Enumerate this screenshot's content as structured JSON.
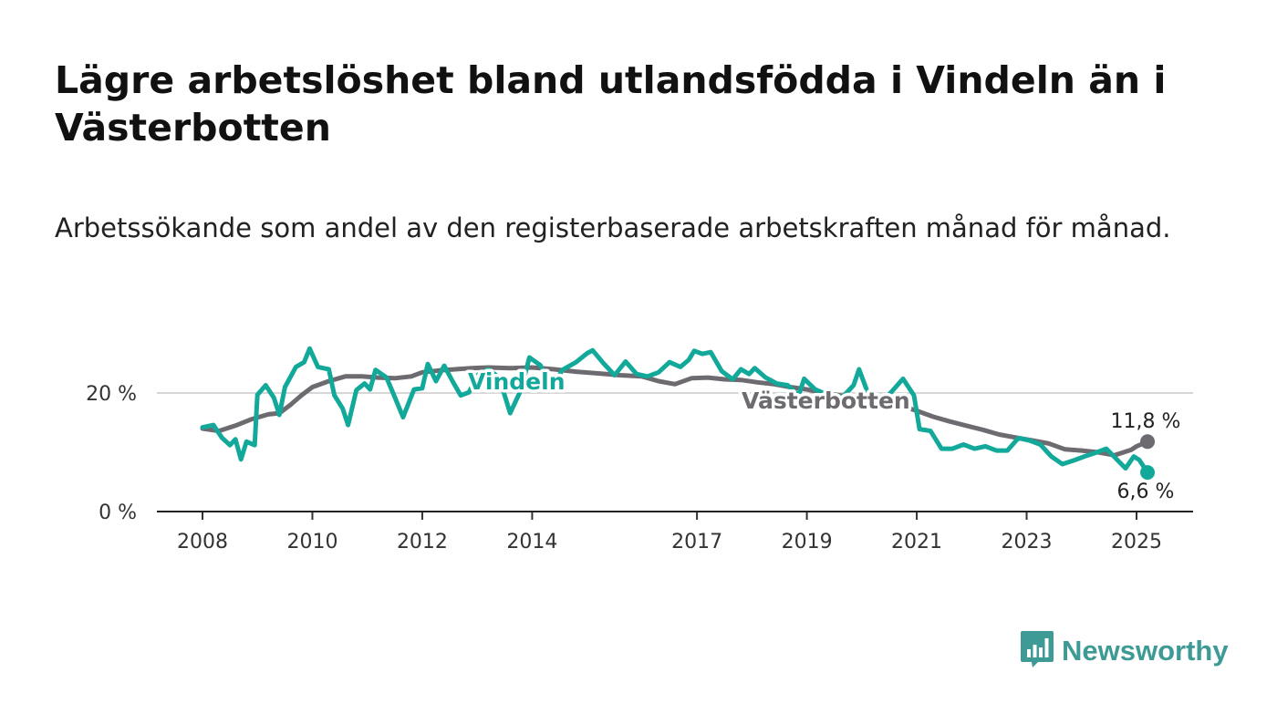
{
  "title": "Lägre arbetslöshet bland utlandsfödda i Vindeln än i Västerbotten",
  "subtitle": "Arbetssökande som andel av den registerbaserade arbetskraften månad för månad.",
  "brand": {
    "name": "Newsworthy",
    "color": "#3e9a95",
    "icon": "bar-chart-icon"
  },
  "chart_data": {
    "type": "line",
    "x_ticks": [
      "2008",
      "2010",
      "2012",
      "2014",
      "2017",
      "2019",
      "2021",
      "2023",
      "2025"
    ],
    "y_ticks": [
      "0 %",
      "20 %"
    ],
    "ylim": [
      0,
      30
    ],
    "grid": true,
    "series": [
      {
        "name": "Västerbotten",
        "color": "#6d6a70",
        "end_label": "11,8 %",
        "points": [
          [
            2008.0,
            14.0
          ],
          [
            2008.3,
            13.6
          ],
          [
            2008.6,
            14.5
          ],
          [
            2008.9,
            15.6
          ],
          [
            2009.2,
            16.4
          ],
          [
            2009.4,
            16.6
          ],
          [
            2009.6,
            18.0
          ],
          [
            2009.8,
            19.6
          ],
          [
            2010.0,
            21.0
          ],
          [
            2010.3,
            22.0
          ],
          [
            2010.6,
            22.8
          ],
          [
            2010.9,
            22.8
          ],
          [
            2011.2,
            22.6
          ],
          [
            2011.5,
            22.5
          ],
          [
            2011.8,
            22.8
          ],
          [
            2012.0,
            23.5
          ],
          [
            2012.3,
            23.8
          ],
          [
            2012.6,
            24.0
          ],
          [
            2012.9,
            24.2
          ],
          [
            2013.2,
            24.3
          ],
          [
            2013.6,
            24.2
          ],
          [
            2014.0,
            24.3
          ],
          [
            2014.4,
            24.0
          ],
          [
            2014.8,
            23.6
          ],
          [
            2015.2,
            23.3
          ],
          [
            2015.6,
            23.0
          ],
          [
            2016.0,
            22.8
          ],
          [
            2016.3,
            22.0
          ],
          [
            2016.6,
            21.5
          ],
          [
            2016.9,
            22.5
          ],
          [
            2017.2,
            22.6
          ],
          [
            2017.5,
            22.3
          ],
          [
            2017.8,
            22.2
          ],
          [
            2018.1,
            21.8
          ],
          [
            2018.4,
            21.5
          ],
          [
            2018.7,
            21.0
          ],
          [
            2019.0,
            20.6
          ],
          [
            2019.3,
            20.0
          ],
          [
            2019.6,
            19.6
          ],
          [
            2019.9,
            19.3
          ],
          [
            2020.2,
            19.5
          ],
          [
            2020.5,
            18.5
          ],
          [
            2020.8,
            17.6
          ],
          [
            2021.0,
            17.0
          ],
          [
            2021.3,
            16.0
          ],
          [
            2021.6,
            15.2
          ],
          [
            2021.9,
            14.5
          ],
          [
            2022.2,
            13.8
          ],
          [
            2022.5,
            13.0
          ],
          [
            2022.8,
            12.5
          ],
          [
            2023.1,
            12.0
          ],
          [
            2023.4,
            11.5
          ],
          [
            2023.7,
            10.5
          ],
          [
            2024.0,
            10.3
          ],
          [
            2024.3,
            10.0
          ],
          [
            2024.6,
            9.5
          ],
          [
            2024.9,
            10.4
          ],
          [
            2025.0,
            11.0
          ],
          [
            2025.2,
            11.8
          ]
        ]
      },
      {
        "name": "Vindeln",
        "color": "#13a99a",
        "end_label": "6,6 %",
        "points": [
          [
            2008.0,
            14.2
          ],
          [
            2008.2,
            14.6
          ],
          [
            2008.35,
            12.5
          ],
          [
            2008.5,
            11.2
          ],
          [
            2008.6,
            12.2
          ],
          [
            2008.7,
            8.8
          ],
          [
            2008.8,
            11.8
          ],
          [
            2008.95,
            11.2
          ],
          [
            2009.0,
            19.7
          ],
          [
            2009.15,
            21.3
          ],
          [
            2009.3,
            19.2
          ],
          [
            2009.4,
            16.3
          ],
          [
            2009.5,
            21.0
          ],
          [
            2009.7,
            24.4
          ],
          [
            2009.85,
            25.2
          ],
          [
            2009.95,
            27.5
          ],
          [
            2010.1,
            24.4
          ],
          [
            2010.3,
            24.0
          ],
          [
            2010.4,
            19.6
          ],
          [
            2010.55,
            17.4
          ],
          [
            2010.65,
            14.6
          ],
          [
            2010.8,
            20.5
          ],
          [
            2010.95,
            21.6
          ],
          [
            2011.05,
            20.6
          ],
          [
            2011.15,
            23.9
          ],
          [
            2011.35,
            22.6
          ],
          [
            2011.5,
            19.3
          ],
          [
            2011.65,
            15.9
          ],
          [
            2011.85,
            20.6
          ],
          [
            2012.0,
            20.8
          ],
          [
            2012.1,
            24.9
          ],
          [
            2012.25,
            22.0
          ],
          [
            2012.4,
            24.6
          ],
          [
            2012.55,
            22.0
          ],
          [
            2012.7,
            19.6
          ],
          [
            2012.85,
            20.1
          ],
          [
            2013.0,
            23.0
          ],
          [
            2013.2,
            24.0
          ],
          [
            2013.4,
            22.6
          ],
          [
            2013.6,
            16.6
          ],
          [
            2013.8,
            20.6
          ],
          [
            2013.95,
            26.0
          ],
          [
            2014.15,
            24.7
          ],
          [
            2014.35,
            20.7
          ],
          [
            2014.55,
            23.9
          ],
          [
            2014.8,
            25.2
          ],
          [
            2015.0,
            26.7
          ],
          [
            2015.1,
            27.2
          ],
          [
            2015.3,
            25.0
          ],
          [
            2015.5,
            23.0
          ],
          [
            2015.7,
            25.3
          ],
          [
            2015.9,
            23.2
          ],
          [
            2016.1,
            22.8
          ],
          [
            2016.3,
            23.5
          ],
          [
            2016.5,
            25.2
          ],
          [
            2016.7,
            24.4
          ],
          [
            2016.85,
            25.6
          ],
          [
            2016.95,
            27.1
          ],
          [
            2017.1,
            26.6
          ],
          [
            2017.25,
            26.9
          ],
          [
            2017.45,
            23.7
          ],
          [
            2017.65,
            22.3
          ],
          [
            2017.8,
            24.0
          ],
          [
            2017.95,
            23.2
          ],
          [
            2018.05,
            24.2
          ],
          [
            2018.25,
            22.6
          ],
          [
            2018.45,
            21.6
          ],
          [
            2018.65,
            21.3
          ],
          [
            2018.85,
            19.6
          ],
          [
            2018.95,
            22.4
          ],
          [
            2019.15,
            20.6
          ],
          [
            2019.4,
            19.6
          ],
          [
            2019.65,
            19.3
          ],
          [
            2019.85,
            21.3
          ],
          [
            2019.95,
            24.0
          ],
          [
            2020.15,
            19.0
          ],
          [
            2020.35,
            18.3
          ],
          [
            2020.55,
            20.3
          ],
          [
            2020.75,
            22.4
          ],
          [
            2020.95,
            19.6
          ],
          [
            2021.05,
            13.9
          ],
          [
            2021.25,
            13.6
          ],
          [
            2021.45,
            10.6
          ],
          [
            2021.65,
            10.6
          ],
          [
            2021.85,
            11.3
          ],
          [
            2022.05,
            10.6
          ],
          [
            2022.25,
            11.0
          ],
          [
            2022.45,
            10.3
          ],
          [
            2022.65,
            10.3
          ],
          [
            2022.85,
            12.4
          ],
          [
            2023.05,
            12.0
          ],
          [
            2023.25,
            11.3
          ],
          [
            2023.45,
            9.3
          ],
          [
            2023.65,
            8.0
          ],
          [
            2023.85,
            8.6
          ],
          [
            2024.05,
            9.3
          ],
          [
            2024.25,
            9.9
          ],
          [
            2024.45,
            10.6
          ],
          [
            2024.65,
            8.7
          ],
          [
            2024.8,
            7.3
          ],
          [
            2024.95,
            9.3
          ],
          [
            2025.05,
            8.7
          ],
          [
            2025.2,
            6.6
          ]
        ]
      }
    ]
  }
}
